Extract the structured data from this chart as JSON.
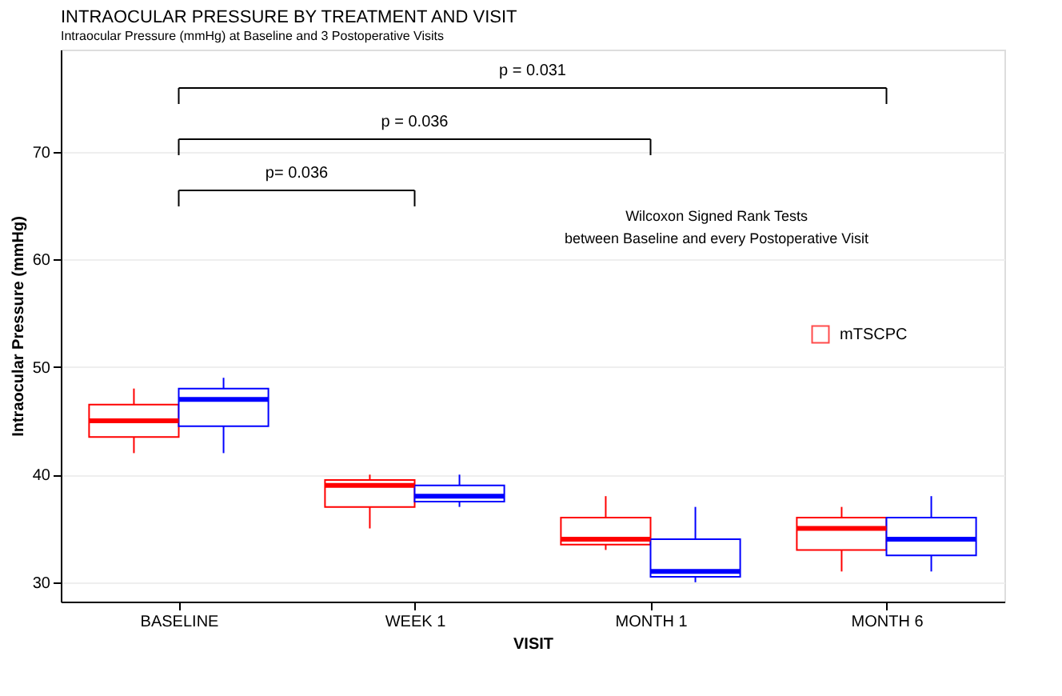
{
  "chart_data": {
    "type": "box",
    "title": "INTRAOCULAR PRESSURE BY TREATMENT AND VISIT",
    "subtitle": "Intraocular Pressure (mmHg) at Baseline and 3 Postoperative Visits",
    "xlabel": "VISIT",
    "ylabel": "Intraocular Pressure (mmHg)",
    "categories": [
      "BASELINE",
      "WEEK 1",
      "MONTH 1",
      "MONTH 6"
    ],
    "series": [
      {
        "name": "mTSCPC",
        "color": "#ff0000",
        "boxes": [
          {
            "low": 42,
            "q1": 43.5,
            "median": 45,
            "q3": 46.5,
            "high": 48
          },
          {
            "low": 35,
            "q1": 37,
            "median": 39,
            "q3": 39.5,
            "high": 40
          },
          {
            "low": 33,
            "q1": 33.5,
            "median": 34,
            "q3": 36,
            "high": 38
          },
          {
            "low": 31,
            "q1": 33,
            "median": 35,
            "q3": 36,
            "high": 37
          }
        ]
      },
      {
        "color": "#0000ff",
        "boxes": [
          {
            "low": 42,
            "q1": 44.5,
            "median": 47,
            "q3": 48,
            "high": 49
          },
          {
            "low": 37,
            "q1": 37.5,
            "median": 38,
            "q3": 39,
            "high": 40
          },
          {
            "low": 30,
            "q1": 30.5,
            "median": 31,
            "q3": 34,
            "high": 37
          },
          {
            "low": 31,
            "q1": 32.5,
            "median": 34,
            "q3": 36,
            "high": 38
          }
        ]
      }
    ],
    "ylim": [
      28.2,
      79.5
    ],
    "yticks": [
      30,
      40,
      50,
      60,
      70
    ],
    "grid": "y",
    "legend": "right",
    "annotations": [
      "p= 0.036",
      "p = 0.036",
      "p = 0.031",
      "Wilcoxon Signed Rank Tests",
      "between Baseline and every Postoperative Visit"
    ]
  }
}
